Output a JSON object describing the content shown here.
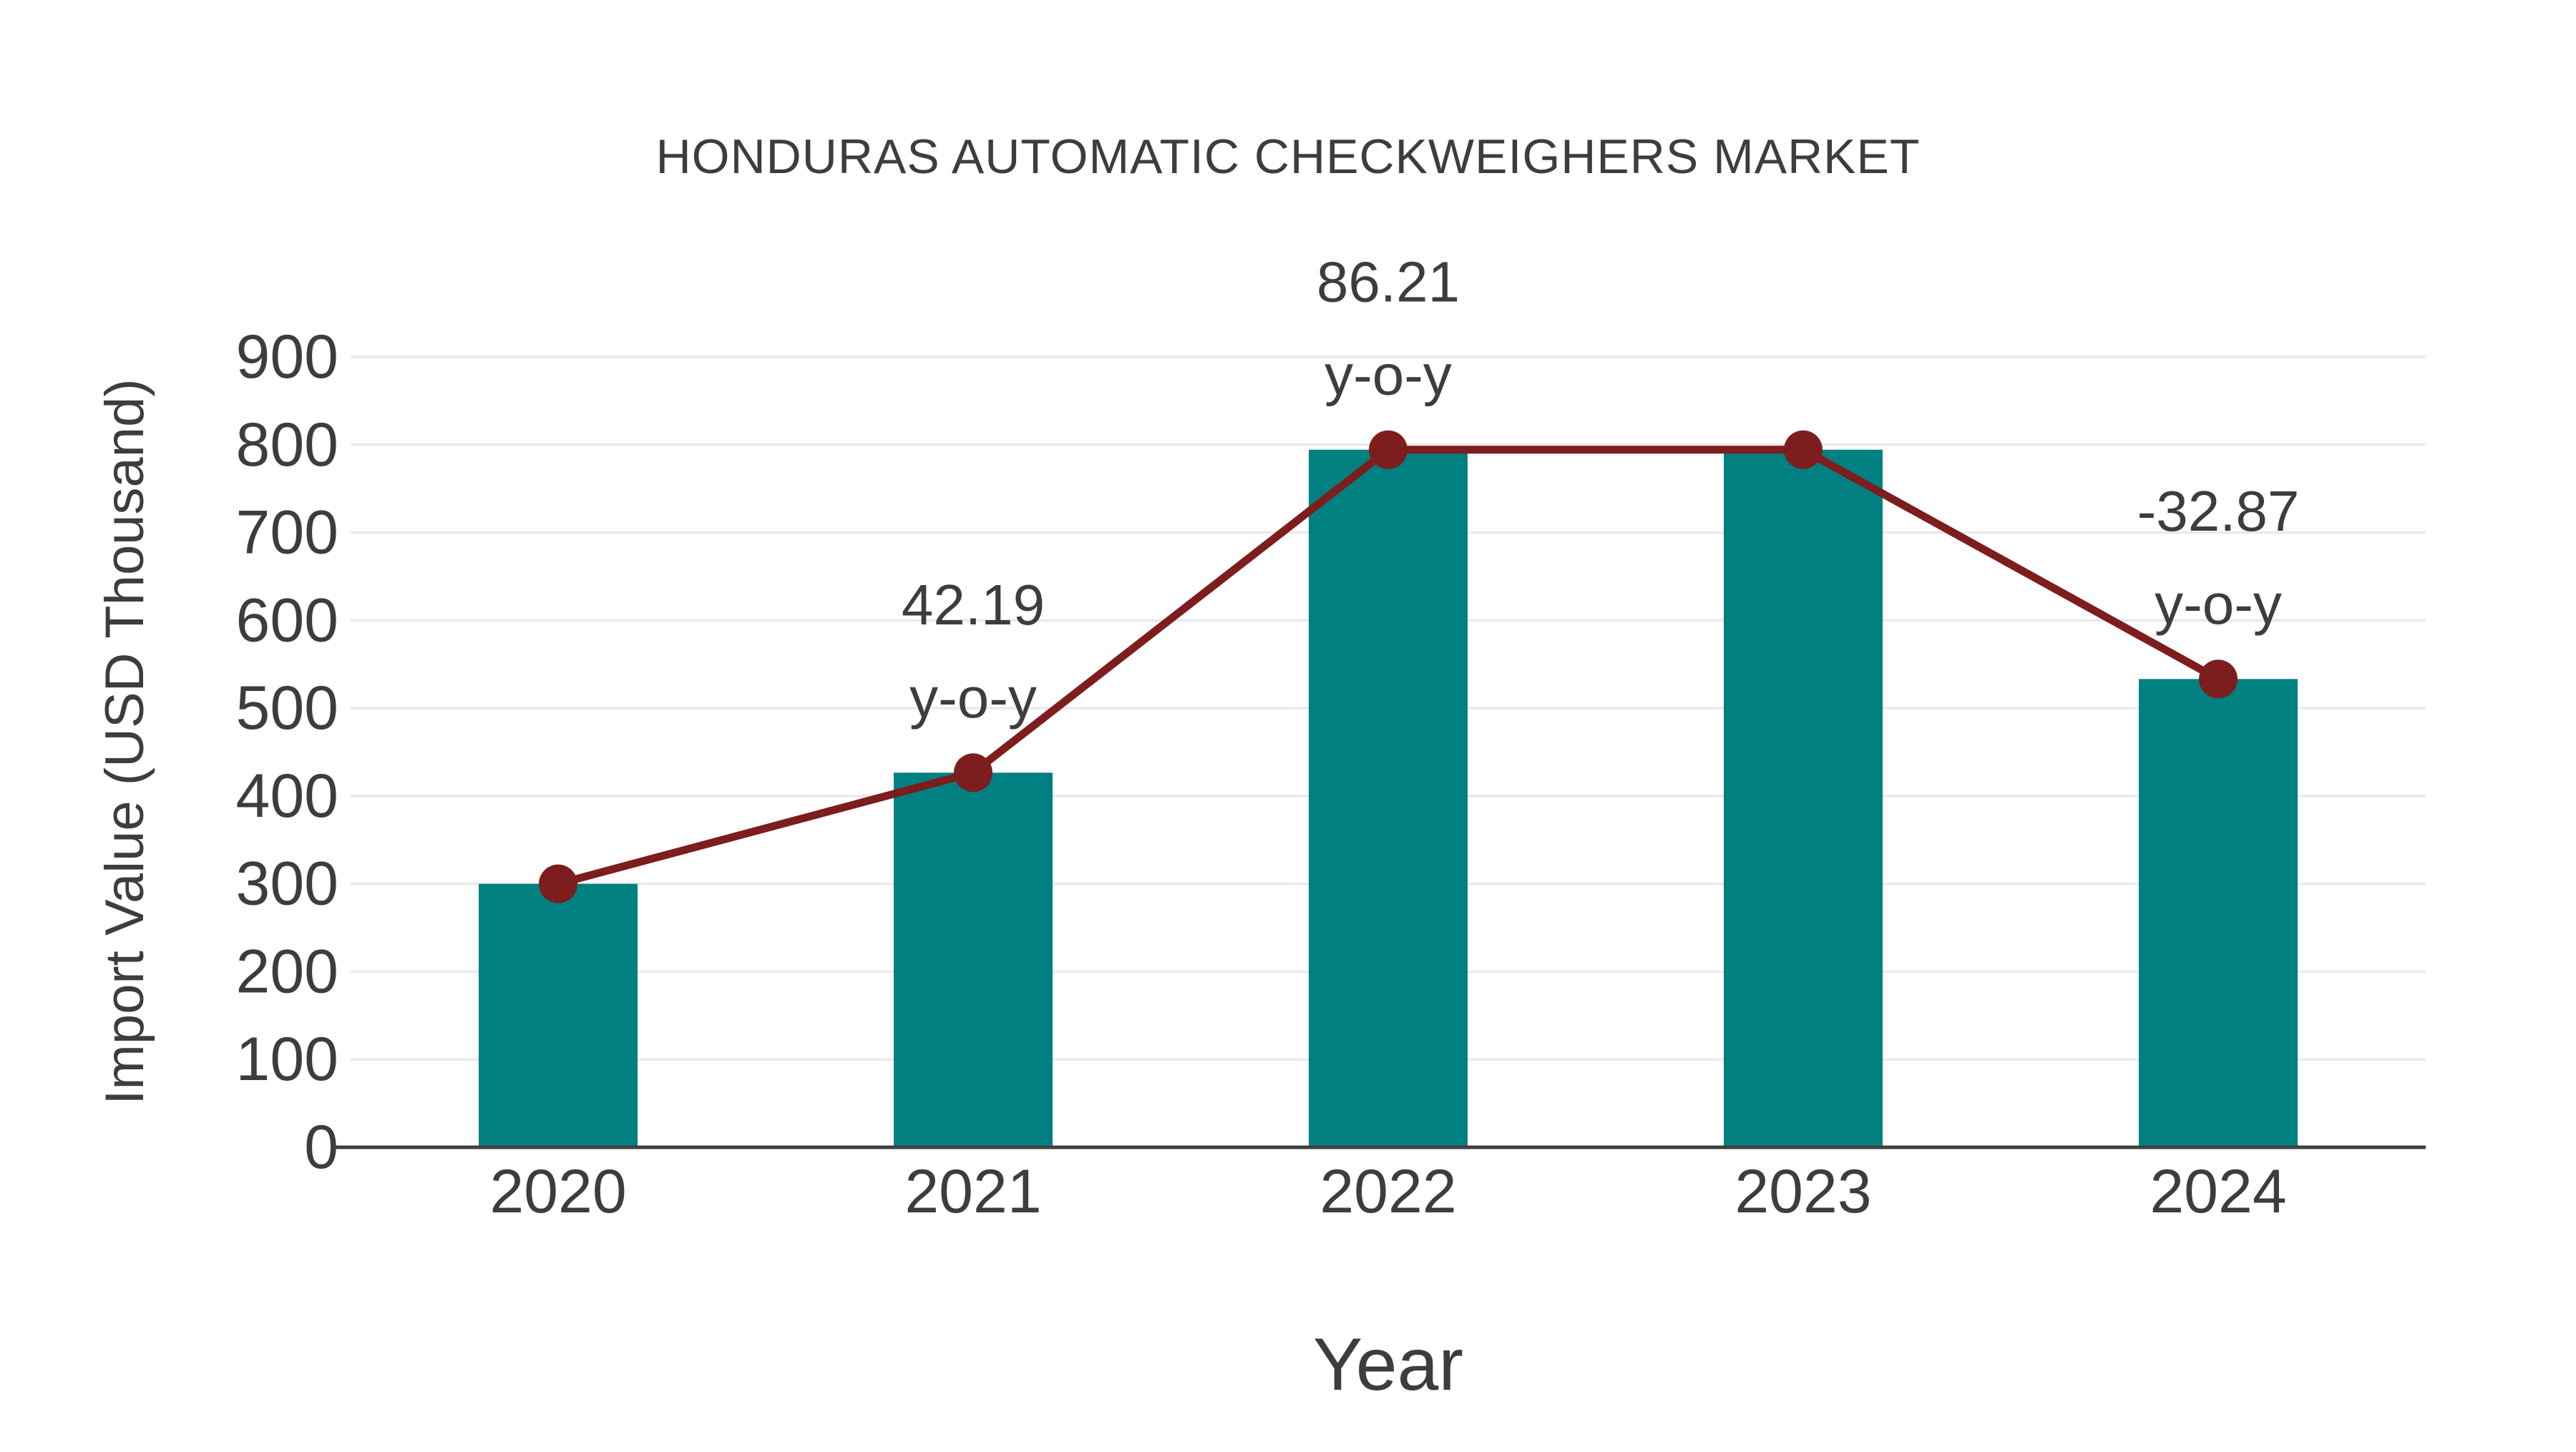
{
  "page": {
    "background": "#ffffff"
  },
  "chart_data": {
    "type": "bar",
    "title": "HONDURAS AUTOMATIC CHECKWEIGHERS MARKET",
    "xlabel": "Year",
    "ylabel": "Import Value (USD Thousand)",
    "categories": [
      "2020",
      "2021",
      "2022",
      "2023",
      "2024"
    ],
    "series": [
      {
        "name": "import-value-bars",
        "type": "bar",
        "color": "#008080",
        "values": [
          300,
          426.57,
          794.32,
          794.32,
          533.23
        ]
      },
      {
        "name": "import-value-trend",
        "type": "line",
        "color": "#7D1D1D",
        "values": [
          300,
          426.57,
          794.32,
          794.32,
          533.23
        ]
      }
    ],
    "annotations": [
      {
        "category": "2021",
        "value_label": "42.19",
        "suffix_label": "y-o-y"
      },
      {
        "category": "2022",
        "value_label": "86.21",
        "suffix_label": "y-o-y"
      },
      {
        "category": "2024",
        "value_label": "-32.87",
        "suffix_label": "y-o-y"
      }
    ],
    "ylim": [
      0,
      900
    ],
    "yticks": [
      0,
      100,
      200,
      300,
      400,
      500,
      600,
      700,
      800,
      900
    ],
    "grid": "horizontal",
    "legend": "none",
    "colors": {
      "bar": "#008080",
      "line": "#7D1D1D",
      "marker": "#7D1D1D",
      "grid": "#e9e9e9",
      "axis": "#3f3f3f",
      "text": "#3d3d3d"
    }
  }
}
